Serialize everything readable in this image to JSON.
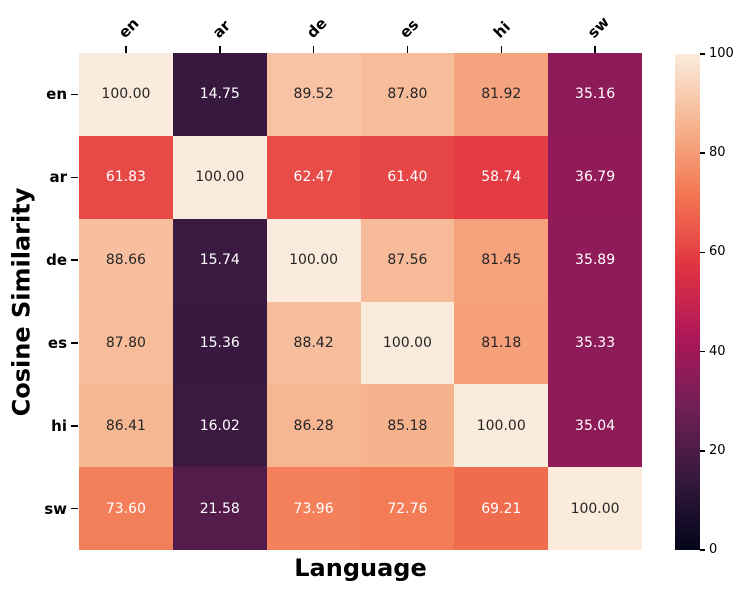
{
  "chart_data": {
    "type": "heatmap",
    "title": "",
    "xlabel": "Language",
    "ylabel": "Cosine Similarity",
    "x_categories": [
      "en",
      "ar",
      "de",
      "es",
      "hi",
      "sw"
    ],
    "y_categories": [
      "en",
      "ar",
      "de",
      "es",
      "hi",
      "sw"
    ],
    "matrix": [
      [
        100.0,
        14.75,
        89.52,
        87.8,
        81.92,
        35.16
      ],
      [
        61.83,
        100.0,
        62.47,
        61.4,
        58.74,
        36.79
      ],
      [
        88.66,
        15.74,
        100.0,
        87.56,
        81.45,
        35.89
      ],
      [
        87.8,
        15.36,
        88.42,
        100.0,
        81.18,
        35.33
      ],
      [
        86.41,
        16.02,
        86.28,
        85.18,
        100.0,
        35.04
      ],
      [
        73.6,
        21.58,
        73.96,
        72.76,
        69.21,
        100.0
      ]
    ],
    "decimals": 2,
    "vmin": 0,
    "vmax": 100,
    "colorbar_ticks": [
      0,
      20,
      40,
      60,
      80,
      100
    ],
    "legend_position": "right-colorbar",
    "grid": false,
    "colormap": {
      "name": "rocket",
      "anchors": [
        {
          "t": 0.0,
          "color": "#03051A"
        },
        {
          "t": 0.1429,
          "color": "#35193E"
        },
        {
          "t": 0.2857,
          "color": "#701F57"
        },
        {
          "t": 0.4286,
          "color": "#AD1759"
        },
        {
          "t": 0.5714,
          "color": "#E13342"
        },
        {
          "t": 0.7143,
          "color": "#F37651"
        },
        {
          "t": 0.8571,
          "color": "#F6B48F"
        },
        {
          "t": 1.0,
          "color": "#FAEBDC"
        }
      ]
    },
    "colors": {
      "background": "#FFFFFF",
      "annotation_dark": "#262626",
      "annotation_light": "#FFFFFF",
      "tick_color": "#000000"
    }
  }
}
